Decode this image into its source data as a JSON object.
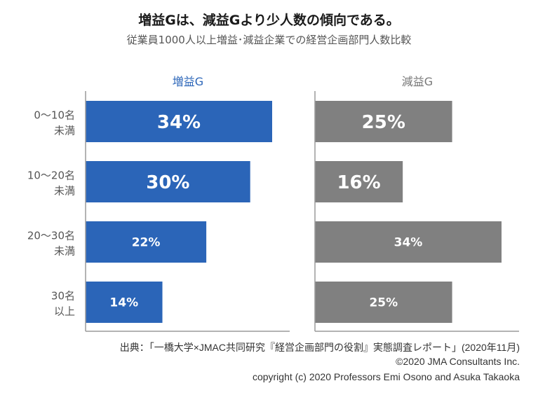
{
  "title": "増益Gは、減益Gより少人数の傾向である。",
  "subtitle": "従業員1000人以上増益･減益企業での経営企画部門人数比較",
  "chart_data": {
    "type": "bar",
    "orientation": "horizontal",
    "title": "増益Gは、減益Gより少人数の傾向である。",
    "subtitle": "従業員1000人以上増益･減益企業での経営企画部門人数比較",
    "categories": [
      [
        "0～10名",
        "未満"
      ],
      [
        "10～20名",
        "未満"
      ],
      [
        "20～30名",
        "未満"
      ],
      [
        "30名",
        "以上"
      ]
    ],
    "series": [
      {
        "name": "増益G",
        "values": [
          34,
          30,
          22,
          14
        ],
        "labels": [
          "34%",
          "30%",
          "22%",
          "14%"
        ],
        "color": "#2b65b8",
        "title_color": "#2b65b8"
      },
      {
        "name": "減益G",
        "values": [
          25,
          16,
          34,
          25
        ],
        "labels": [
          "25%",
          "16%",
          "34%",
          "25%"
        ],
        "color": "#808080",
        "title_color": "#777777"
      }
    ],
    "xlabel": "",
    "ylabel": "",
    "unit": "%",
    "xlim": [
      0,
      37
    ],
    "grid": false,
    "legend": "panel titles above each panel"
  },
  "footer": {
    "source": "出典：「一橋大学×JMAC共同研究『経営企画部門の役割』実態調査レポート」(2020年11月)",
    "copyright1": "©2020 JMA Consultants Inc.",
    "copyright2": "copyright (c) 2020 Professors Emi Osono and Asuka Takaoka"
  }
}
